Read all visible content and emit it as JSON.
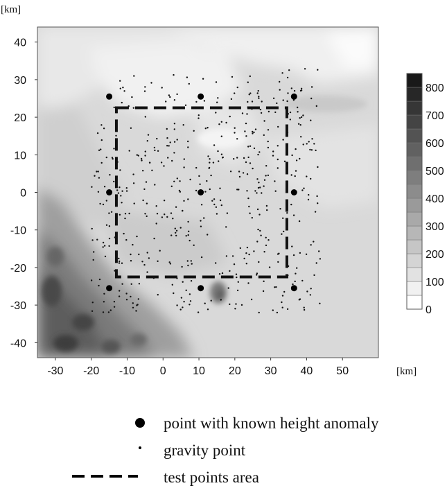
{
  "chart_data": {
    "type": "scatter",
    "map_type": "grayscale height contour map with point overlays",
    "x_unit": "[km]",
    "y_unit": "[km]",
    "xlim": [
      -35,
      60
    ],
    "ylim": [
      -44,
      44
    ],
    "x_ticks": [
      -30,
      -20,
      -10,
      0,
      10,
      20,
      30,
      40,
      50
    ],
    "y_ticks": [
      40,
      30,
      20,
      10,
      0,
      -10,
      -20,
      -30,
      -40
    ],
    "colorbar": {
      "ticks": [
        0,
        100,
        200,
        300,
        400,
        500,
        600,
        700,
        800
      ],
      "min": 0,
      "max": 850,
      "step": 50
    },
    "known_points": [
      {
        "x": -15,
        "y": 25.5
      },
      {
        "x": 10.5,
        "y": 25.5
      },
      {
        "x": 36.5,
        "y": 25.5
      },
      {
        "x": -15,
        "y": 0
      },
      {
        "x": 10.5,
        "y": 0
      },
      {
        "x": 36.5,
        "y": 0
      },
      {
        "x": -15,
        "y": -25.5
      },
      {
        "x": 10.5,
        "y": -25.5
      },
      {
        "x": 36.5,
        "y": -25.5
      }
    ],
    "test_area": {
      "x": [
        -13,
        34.5
      ],
      "y": [
        -22.5,
        22.5
      ]
    },
    "legend": [
      {
        "symbol": "large-dot",
        "label": "point with known height anomaly"
      },
      {
        "symbol": "small-dot",
        "label": "gravity point"
      },
      {
        "symbol": "dashed-line",
        "label": "test points area"
      }
    ]
  }
}
